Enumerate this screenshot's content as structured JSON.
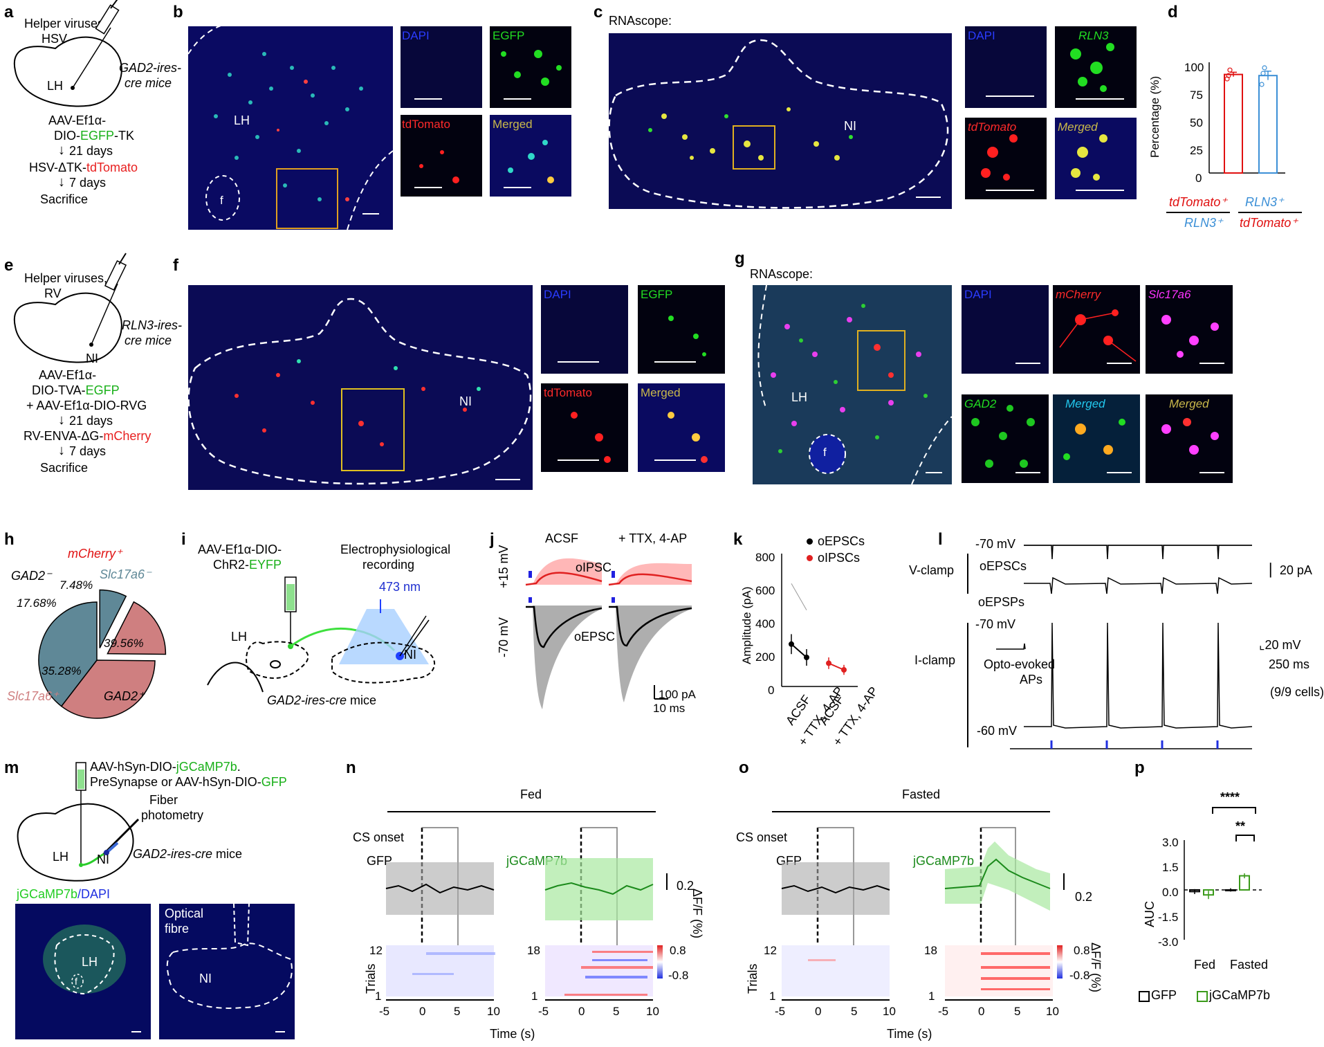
{
  "panels": {
    "a": {
      "letter": "a",
      "line1": "Helper viruses,",
      "line2": "HSV",
      "region": "LH",
      "mice": "GAD2-ires-",
      "mice2": "cre mice",
      "step1a": "AAV-Ef1α-",
      "step1b_pre": "DIO-",
      "step1b_green": "EGFP",
      "step1b_post": "-TK",
      "days1": "21 days",
      "step2_pre": "HSV-ΔTK-",
      "step2_red": "tdTomato",
      "days2": "7 days",
      "final": "Sacrifice"
    },
    "b": {
      "letter": "b",
      "region": "LH",
      "fornix": "f",
      "dapi": "DAPI",
      "egfp": "EGFP",
      "tdtomato": "tdTomato",
      "merged": "Merged"
    },
    "c": {
      "letter": "c",
      "title": "RNAscope:",
      "region": "NI",
      "dapi": "DAPI",
      "rln3": "RLN3",
      "tdtomato": "tdTomato",
      "merged": "Merged"
    },
    "d": {
      "letter": "d",
      "ylabel": "Percentage (%)",
      "yticks": [
        "100",
        "75",
        "50",
        "25",
        "0"
      ],
      "xlab1_top": "tdTomato⁺",
      "xlab1_bot": "RLN3⁺",
      "xlab2_top": "RLN3⁺",
      "xlab2_bot": "tdTomato⁺"
    },
    "e": {
      "letter": "e",
      "line1": "Helper viruses,",
      "line2": "RV",
      "region": "NI",
      "mice": "RLN3-ires-",
      "mice2": "cre mice",
      "step1a": "AAV-Ef1α-",
      "step1b_pre": "DIO-TVA-",
      "step1b_green": "EGFP",
      "step1c": "+ AAV-Ef1α-DIO-RVG",
      "days1": "21 days",
      "step2_pre": "RV-ENVA-ΔG-",
      "step2_red": "mCherry",
      "days2": "7 days",
      "final": "Sacrifice"
    },
    "f": {
      "letter": "f",
      "region": "NI",
      "dapi": "DAPI",
      "egfp": "EGFP",
      "tdtomato": "tdTomato",
      "merged": "Merged"
    },
    "g": {
      "letter": "g",
      "title": "RNAscope:",
      "region": "LH",
      "fornix": "f",
      "dapi": "DAPI",
      "mcherry": "mCherry",
      "slc": "Slc17a6",
      "gad2": "GAD2",
      "merged1": "Merged",
      "merged2": "Merged"
    },
    "h": {
      "letter": "h",
      "title": "mCherry⁺",
      "gad2neg": "GAD2⁻",
      "slcneg": "Slc17a6⁻",
      "slcpos": "Slc17a6⁺",
      "gad2pos": "GAD2⁺",
      "p1": "7.48%",
      "p2": "17.68%",
      "p3": "35.28%",
      "p4": "39.56%"
    },
    "i": {
      "letter": "i",
      "virus1": "AAV-Ef1α-DIO-",
      "virus2_pre": "ChR2-",
      "virus2_green": "EYFP",
      "record1": "Electrophysiological",
      "record2": "recording",
      "wavelength": "473 nm",
      "lh": "LH",
      "ni": "NI",
      "mice": "GAD2-ires-cre",
      "mice_post": " mice"
    },
    "j": {
      "letter": "j",
      "acsf": "ACSF",
      "ttx": "+ TTX, 4-AP",
      "plus15": "+15 mV",
      "minus70": "-70 mV",
      "oipsc": "oIPSC",
      "oepsc": "oEPSC",
      "sb1": "100 pA",
      "sb2": "10 ms"
    },
    "k": {
      "letter": "k",
      "ylabel": "Amplitude (pA)",
      "yticks": [
        "800",
        "600",
        "400",
        "200",
        "0"
      ],
      "legend1": "oEPSCs",
      "legend2": "oIPSCs",
      "x1": "ACSF",
      "x2": "+ TTX, 4-AP",
      "x3": "ACSF",
      "x4": "+ TTX, 4-AP"
    },
    "l": {
      "letter": "l",
      "v70a": "-70 mV",
      "vclamp": "V-clamp",
      "oepscs": "oEPSCs",
      "sb20pa": "20 pA",
      "oepsps": "oEPSPs",
      "v70b": "-70 mV",
      "iclamp": "I-clamp",
      "opto1": "Opto-evoked",
      "opto2": "APs",
      "v60": "-60 mV",
      "sb20mv": "20 mV",
      "sb250": "250 ms",
      "cells": "(9/9 cells)"
    },
    "m": {
      "letter": "m",
      "virus1_pre": "AAV-hSyn-DIO-",
      "virus1_green": "jGCaMP7b",
      "virus1_post": ".",
      "virus2_pre": "PreSynapse or AAV-hSyn-DIO-",
      "virus2_green": "GFP",
      "fiber1": "Fiber",
      "fiber2": "photometry",
      "lh": "LH",
      "ni": "NI",
      "mice": "GAD2-ires-cre",
      "mice_post": " mice",
      "img_label_green": "jGCaMP7b",
      "img_label_blue": "/DAPI",
      "lh2": "LH",
      "f": "f",
      "optical1": "Optical",
      "optical2": "fibre",
      "ni2": "NI"
    },
    "n": {
      "letter": "n",
      "title": "Fed",
      "cs": "CS onset",
      "gfp": "GFP",
      "jg": "jGCaMP7b",
      "sb": "0.2",
      "ylab": "ΔF/F (%)",
      "trials": "Trials",
      "t12": "12",
      "t1": "1",
      "t18": "18",
      "t1b": "1",
      "c1": "0.8",
      "c2": "-0.8",
      "xlabel": "Time (s)",
      "xticks": [
        "-5",
        "0",
        "5",
        "10"
      ]
    },
    "o": {
      "letter": "o",
      "title": "Fasted",
      "cs": "CS onset",
      "gfp": "GFP",
      "jg": "jGCaMP7b",
      "sb": "0.2",
      "ylab": "ΔF/F (%)",
      "trials": "Trials",
      "t12": "12",
      "t1": "1",
      "t18": "18",
      "t1b": "1",
      "c1": "0.8",
      "c2": "-0.8",
      "xlabel": "Time (s)",
      "xticks": [
        "-5",
        "0",
        "5",
        "10"
      ]
    },
    "p": {
      "letter": "p",
      "ylabel": "AUC",
      "yticks": [
        "3.0",
        "1.5",
        "0.0",
        "-1.5",
        "-3.0"
      ],
      "x1": "Fed",
      "x2": "Fasted",
      "sig1": "****",
      "sig2": "**",
      "legend1": "GFP",
      "legend2": "jGCaMP7b"
    }
  },
  "chart_data": [
    {
      "type": "bar",
      "panel": "d",
      "categories": [
        "tdTomato⁺/RLN3⁺",
        "RLN3⁺/tdTomato⁺"
      ],
      "values": [
        89,
        88
      ],
      "errors": [
        2,
        4
      ],
      "points": [
        [
          85,
          88,
          93
        ],
        [
          80,
          90,
          95
        ]
      ],
      "ylabel": "Percentage (%)",
      "ylim": [
        0,
        100
      ],
      "colors": [
        "#e01010",
        "#3b8fd6"
      ]
    },
    {
      "type": "pie",
      "panel": "h",
      "categories": [
        "GAD2⁻ / Slc17a6⁻",
        "GAD2⁻ / Slc17a6⁺",
        "GAD2⁺ / Slc17a6⁺",
        "GAD2⁺ / Slc17a6⁻"
      ],
      "values": [
        7.48,
        17.68,
        35.28,
        39.56
      ],
      "colors": [
        "#5f8897",
        "#cf7f80",
        "#cf7f80",
        "#5f8897"
      ]
    },
    {
      "type": "scatter",
      "panel": "k",
      "ylabel": "Amplitude (pA)",
      "ylim": [
        0,
        800
      ],
      "categories": [
        "ACSF",
        "+ TTX, 4-AP",
        "ACSF",
        "+ TTX, 4-AP"
      ],
      "series": [
        {
          "name": "oEPSCs",
          "values": [
            255,
            175
          ],
          "errors": [
            60,
            50
          ]
        },
        {
          "name": "oIPSCs",
          "values": [
            140,
            100
          ],
          "errors": [
            35,
            30
          ]
        }
      ]
    },
    {
      "type": "bar",
      "panel": "p",
      "ylabel": "AUC",
      "ylim": [
        -3.0,
        3.0
      ],
      "categories": [
        "Fed",
        "Fasted"
      ],
      "series": [
        {
          "name": "GFP",
          "values": [
            -0.1,
            0.0
          ],
          "errors": [
            0.15,
            0.1
          ]
        },
        {
          "name": "jGCaMP7b",
          "values": [
            -0.3,
            0.85
          ],
          "errors": [
            0.25,
            0.15
          ]
        }
      ]
    }
  ]
}
